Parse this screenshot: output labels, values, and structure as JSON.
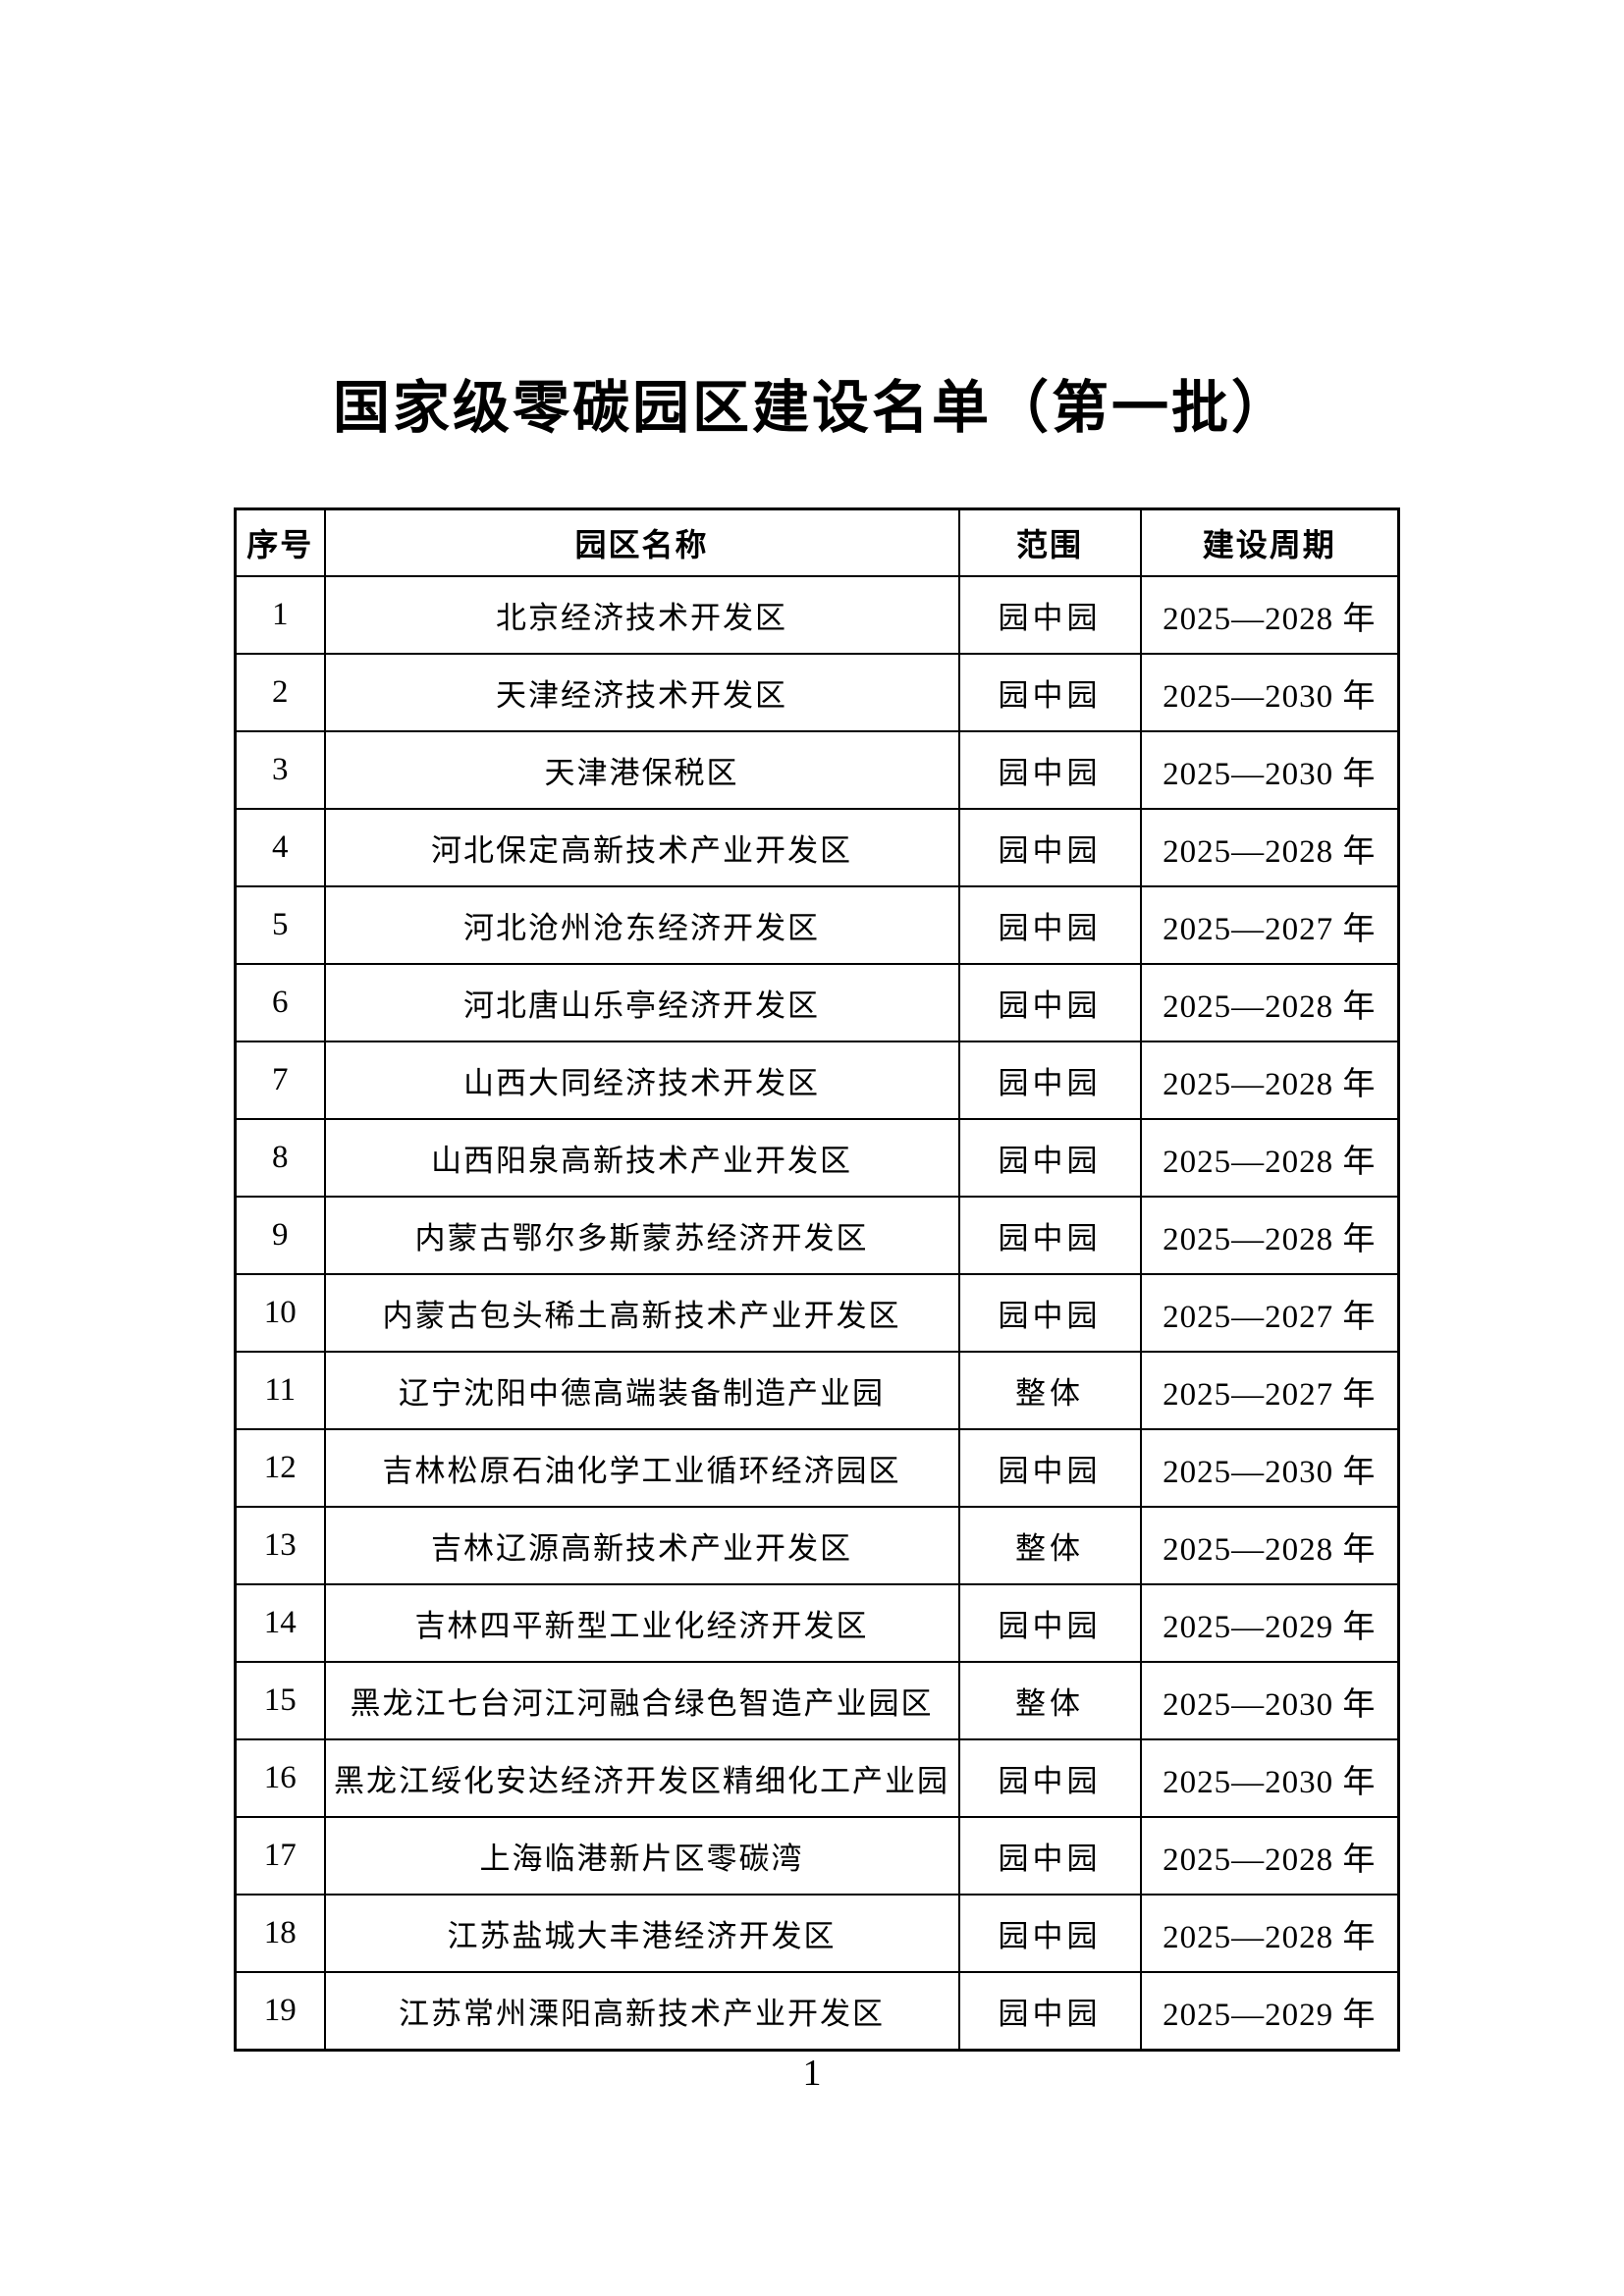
{
  "page": {
    "title": "国家级零碳园区建设名单（第一批）",
    "page_number": "1"
  },
  "table": {
    "headers": [
      "序号",
      "园区名称",
      "范围",
      "建设周期"
    ],
    "rows": [
      {
        "no": "1",
        "name": "北京经济技术开发区",
        "scope": "园中园",
        "period": "2025—2028 年"
      },
      {
        "no": "2",
        "name": "天津经济技术开发区",
        "scope": "园中园",
        "period": "2025—2030 年"
      },
      {
        "no": "3",
        "name": "天津港保税区",
        "scope": "园中园",
        "period": "2025—2030 年"
      },
      {
        "no": "4",
        "name": "河北保定高新技术产业开发区",
        "scope": "园中园",
        "period": "2025—2028 年"
      },
      {
        "no": "5",
        "name": "河北沧州沧东经济开发区",
        "scope": "园中园",
        "period": "2025—2027 年"
      },
      {
        "no": "6",
        "name": "河北唐山乐亭经济开发区",
        "scope": "园中园",
        "period": "2025—2028 年"
      },
      {
        "no": "7",
        "name": "山西大同经济技术开发区",
        "scope": "园中园",
        "period": "2025—2028 年"
      },
      {
        "no": "8",
        "name": "山西阳泉高新技术产业开发区",
        "scope": "园中园",
        "period": "2025—2028 年"
      },
      {
        "no": "9",
        "name": "内蒙古鄂尔多斯蒙苏经济开发区",
        "scope": "园中园",
        "period": "2025—2028 年"
      },
      {
        "no": "10",
        "name": "内蒙古包头稀土高新技术产业开发区",
        "scope": "园中园",
        "period": "2025—2027 年"
      },
      {
        "no": "11",
        "name": "辽宁沈阳中德高端装备制造产业园",
        "scope": "整体",
        "period": "2025—2027 年"
      },
      {
        "no": "12",
        "name": "吉林松原石油化学工业循环经济园区",
        "scope": "园中园",
        "period": "2025—2030 年"
      },
      {
        "no": "13",
        "name": "吉林辽源高新技术产业开发区",
        "scope": "整体",
        "period": "2025—2028 年"
      },
      {
        "no": "14",
        "name": "吉林四平新型工业化经济开发区",
        "scope": "园中园",
        "period": "2025—2029 年"
      },
      {
        "no": "15",
        "name": "黑龙江七台河江河融合绿色智造产业园区",
        "scope": "整体",
        "period": "2025—2030 年"
      },
      {
        "no": "16",
        "name": "黑龙江绥化安达经济开发区精细化工产业园",
        "scope": "园中园",
        "period": "2025—2030 年"
      },
      {
        "no": "17",
        "name": "上海临港新片区零碳湾",
        "scope": "园中园",
        "period": "2025—2028 年"
      },
      {
        "no": "18",
        "name": "江苏盐城大丰港经济开发区",
        "scope": "园中园",
        "period": "2025—2028 年"
      },
      {
        "no": "19",
        "name": "江苏常州溧阳高新技术产业开发区",
        "scope": "园中园",
        "period": "2025—2029 年"
      }
    ]
  }
}
